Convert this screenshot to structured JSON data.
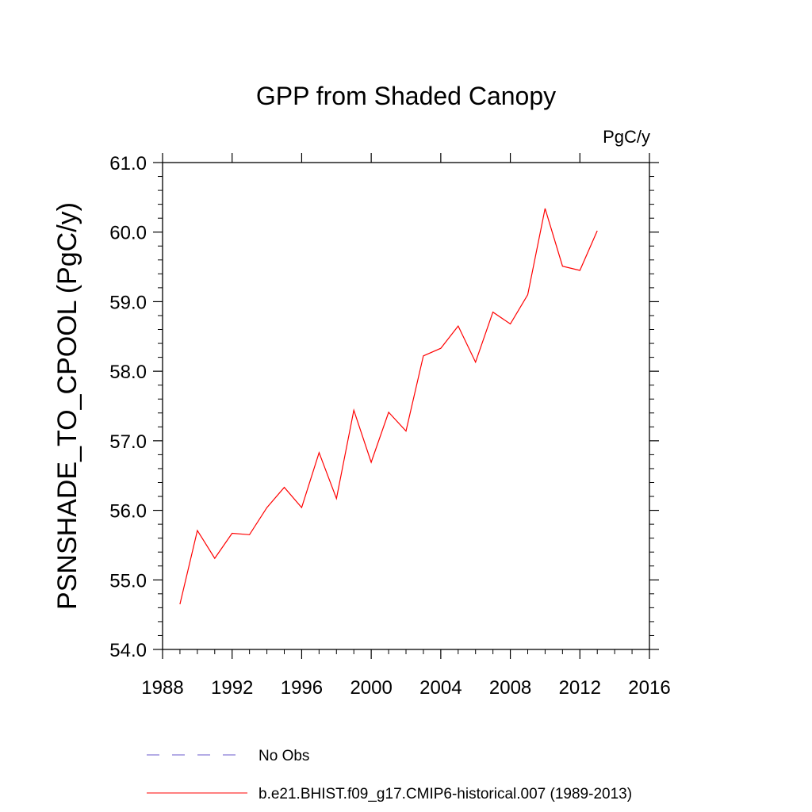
{
  "chart_data": {
    "type": "line",
    "title": "GPP from Shaded Canopy",
    "units": "PgC/y",
    "ylabel": "PSNSHADE_TO_CPOOL  (PgC/y)",
    "xlabel": "",
    "xlim": [
      1988,
      2016
    ],
    "ylim": [
      54.0,
      61.0
    ],
    "x_ticks": [
      "1988",
      "1992",
      "1996",
      "2000",
      "2004",
      "2008",
      "2012",
      "2016"
    ],
    "y_ticks": [
      "54.0",
      "55.0",
      "56.0",
      "57.0",
      "58.0",
      "59.0",
      "60.0",
      "61.0"
    ],
    "x_tick_values": [
      1988,
      1992,
      1996,
      2000,
      2004,
      2008,
      2012,
      2016
    ],
    "y_tick_values": [
      54,
      55,
      56,
      57,
      58,
      59,
      60,
      61
    ],
    "series": [
      {
        "name": "b.e21.BHIST.f09_g17.CMIP6-historical.007 (1989-2013)",
        "color": "#ff0000",
        "x": [
          1989,
          1990,
          1991,
          1992,
          1993,
          1994,
          1995,
          1996,
          1997,
          1998,
          1999,
          2000,
          2001,
          2002,
          2003,
          2004,
          2005,
          2006,
          2007,
          2008,
          2009,
          2010,
          2011,
          2012,
          2013
        ],
        "y": [
          54.65,
          55.71,
          55.31,
          55.67,
          55.65,
          56.04,
          56.33,
          56.04,
          56.83,
          56.17,
          57.44,
          56.69,
          57.41,
          57.14,
          58.22,
          58.33,
          58.65,
          58.13,
          58.85,
          58.68,
          59.1,
          60.34,
          59.51,
          59.45,
          60.02
        ]
      }
    ],
    "legend": [
      {
        "label": "No Obs",
        "color": "#6a5acd",
        "style": "dashed"
      },
      {
        "label": "b.e21.BHIST.f09_g17.CMIP6-historical.007 (1989-2013)",
        "color": "#ff0000",
        "style": "solid"
      }
    ],
    "legend_position": "bottom",
    "grid": false
  }
}
